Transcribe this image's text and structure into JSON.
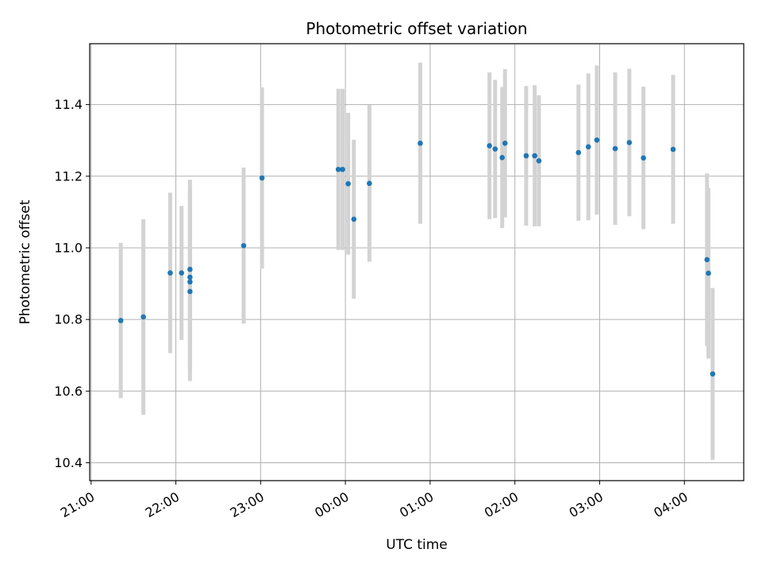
{
  "chart_data": {
    "type": "scatter",
    "title": "Photometric offset variation",
    "xlabel": "UTC time",
    "ylabel": "Photometric offset",
    "xlim": [
      "20:59",
      "04:42"
    ],
    "ylim": [
      10.35,
      11.57
    ],
    "grid": true,
    "x_tick_labels": [
      "21:00",
      "22:00",
      "23:00",
      "00:00",
      "01:00",
      "02:00",
      "03:00",
      "04:00"
    ],
    "x_ticks": [
      "21:00",
      "22:00",
      "23:00",
      "00:00",
      "01:00",
      "02:00",
      "03:00",
      "04:00"
    ],
    "y_ticks": [
      10.4,
      10.6,
      10.8,
      11.0,
      11.2,
      11.4
    ],
    "y_tick_labels": [
      "10.4",
      "10.6",
      "10.8",
      "11.0",
      "11.2",
      "11.4"
    ],
    "series": [
      {
        "marker_color": "#1f77b4",
        "errorbar_color": "#d3d3d3",
        "points": [
          {
            "x": "21:21",
            "y": 10.797,
            "yerr": 0.217
          },
          {
            "x": "21:37",
            "y": 10.807,
            "yerr": 0.273
          },
          {
            "x": "21:56",
            "y": 10.93,
            "yerr": 0.224
          },
          {
            "x": "22:04",
            "y": 10.93,
            "yerr": 0.187
          },
          {
            "x": "22:10",
            "y": 10.94,
            "yerr": 0.25
          },
          {
            "x": "22:10",
            "y": 10.918,
            "yerr": 0.25
          },
          {
            "x": "22:10",
            "y": 10.905,
            "yerr": 0.25
          },
          {
            "x": "22:10",
            "y": 10.878,
            "yerr": 0.25
          },
          {
            "x": "22:48",
            "y": 11.006,
            "yerr": 0.218
          },
          {
            "x": "23:01",
            "y": 11.195,
            "yerr": 0.253
          },
          {
            "x": "23:55",
            "y": 11.219,
            "yerr": 0.225
          },
          {
            "x": "23:58",
            "y": 11.219,
            "yerr": 0.225
          },
          {
            "x": "00:02",
            "y": 11.179,
            "yerr": 0.198
          },
          {
            "x": "00:06",
            "y": 11.08,
            "yerr": 0.222
          },
          {
            "x": "00:17",
            "y": 11.18,
            "yerr": 0.219
          },
          {
            "x": "00:53",
            "y": 11.292,
            "yerr": 0.225
          },
          {
            "x": "01:42",
            "y": 11.285,
            "yerr": 0.205
          },
          {
            "x": "01:46",
            "y": 11.276,
            "yerr": 0.193
          },
          {
            "x": "01:51",
            "y": 11.252,
            "yerr": 0.197
          },
          {
            "x": "01:53",
            "y": 11.292,
            "yerr": 0.207
          },
          {
            "x": "02:08",
            "y": 11.257,
            "yerr": 0.195
          },
          {
            "x": "02:14",
            "y": 11.257,
            "yerr": 0.197
          },
          {
            "x": "02:17",
            "y": 11.243,
            "yerr": 0.183
          },
          {
            "x": "02:45",
            "y": 11.266,
            "yerr": 0.19
          },
          {
            "x": "02:52",
            "y": 11.282,
            "yerr": 0.205
          },
          {
            "x": "02:58",
            "y": 11.301,
            "yerr": 0.208
          },
          {
            "x": "03:11",
            "y": 11.277,
            "yerr": 0.213
          },
          {
            "x": "03:21",
            "y": 11.294,
            "yerr": 0.206
          },
          {
            "x": "03:31",
            "y": 11.251,
            "yerr": 0.199
          },
          {
            "x": "03:52",
            "y": 11.275,
            "yerr": 0.208
          },
          {
            "x": "04:16",
            "y": 10.967,
            "yerr": 0.241
          },
          {
            "x": "04:17",
            "y": 10.929,
            "yerr": 0.238
          },
          {
            "x": "04:20",
            "y": 10.648,
            "yerr": 0.24
          }
        ]
      }
    ]
  }
}
